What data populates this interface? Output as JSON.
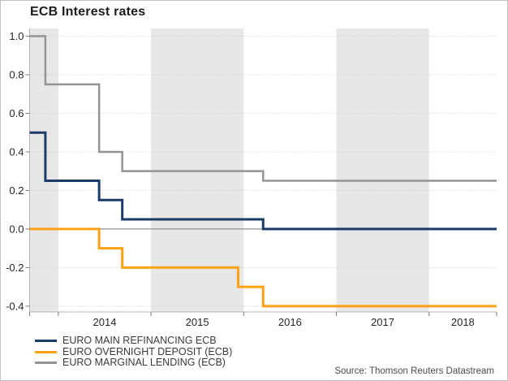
{
  "title": "ECB Interest rates",
  "source": "Source: Thomson Reuters Datastream",
  "legend": {
    "items": [
      {
        "label": "EURO MAIN REFINANCING ECB",
        "color": "#1B3C67"
      },
      {
        "label": "EURO OVERNIGHT DEPOSIT (ECB)",
        "color": "#FFA115"
      },
      {
        "label": "EURO MARGINAL LENDING (ECB)",
        "color": "#949494"
      }
    ]
  },
  "chart_data": {
    "type": "line",
    "title": "ECB Interest rates",
    "xlabel": "",
    "ylabel": "",
    "x_range": [
      2013.69,
      2018.73
    ],
    "y_range": [
      -0.43,
      1.04
    ],
    "x_ticks": [
      2014,
      2015,
      2016,
      2017,
      2018
    ],
    "x_tick_labels": [
      "2014",
      "2015",
      "2016",
      "2017",
      "2018"
    ],
    "y_ticks": [
      1.0,
      0.8,
      0.6,
      0.4,
      0.2,
      0.0,
      -0.2,
      -0.4
    ],
    "y_tick_labels": [
      "1.0",
      "0.8",
      "0.6",
      "0.4",
      "0.2",
      "0.0",
      "-0.2",
      "-0.4"
    ],
    "grid": "dotted-horizontal",
    "legend_position": "bottom-left",
    "shaded_year_bands": [
      [
        2013.69,
        2014
      ],
      [
        2015,
        2016
      ],
      [
        2017,
        2018
      ]
    ],
    "series": [
      {
        "name": "EURO MAIN REFINANCING ECB",
        "color": "#1B3C67",
        "width": 3,
        "step_changes": [
          [
            2013.69,
            0.5
          ],
          [
            2013.86,
            0.25
          ],
          [
            2014.44,
            0.15
          ],
          [
            2014.69,
            0.05
          ],
          [
            2016.21,
            0.0
          ]
        ],
        "end_x": 2018.73
      },
      {
        "name": "EURO OVERNIGHT DEPOSIT (ECB)",
        "color": "#FFA115",
        "width": 3,
        "step_changes": [
          [
            2013.69,
            0.0
          ],
          [
            2014.44,
            -0.1
          ],
          [
            2014.69,
            -0.2
          ],
          [
            2015.94,
            -0.3
          ],
          [
            2016.21,
            -0.4
          ]
        ],
        "end_x": 2018.73
      },
      {
        "name": "EURO MARGINAL LENDING (ECB)",
        "color": "#949494",
        "width": 2.5,
        "step_changes": [
          [
            2013.69,
            1.0
          ],
          [
            2013.86,
            0.75
          ],
          [
            2014.44,
            0.4
          ],
          [
            2014.69,
            0.3
          ],
          [
            2016.21,
            0.25
          ]
        ],
        "end_x": 2018.73
      }
    ],
    "colors": {
      "band": "#e7e7e7",
      "gridline": "#cbcbcb",
      "zero_line": "#787878",
      "axis_line": "#b3b3b3",
      "tick": "#7a7a7a",
      "tick_label": "#262626"
    }
  }
}
